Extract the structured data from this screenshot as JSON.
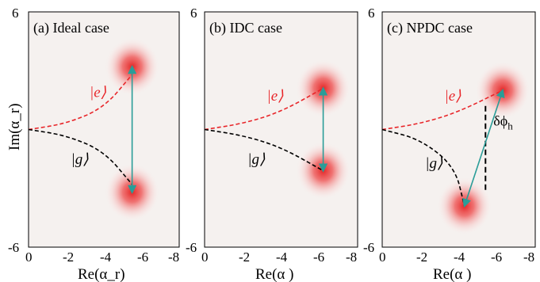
{
  "chart_data": [
    {
      "type": "scatter",
      "title": "(a) Ideal case",
      "xlabel": "Re(α_r)",
      "ylabel": "Im(α_r)",
      "xlim": [
        0,
        -8
      ],
      "ylim": [
        -6,
        6
      ],
      "x_ticks": [
        "0",
        "-2",
        "-4",
        "-6",
        "-8"
      ],
      "y_ticks": [
        "6",
        "-6"
      ],
      "blobs": [
        {
          "x": -5.5,
          "y": 3.2
        },
        {
          "x": -5.5,
          "y": -3.2
        }
      ],
      "paths": [
        {
          "name": "|e⟩",
          "color": "#e8262a",
          "points": [
            [
              0,
              0
            ],
            [
              -2,
              0.3
            ],
            [
              -4,
              1.1
            ],
            [
              -5.5,
              2.8
            ]
          ]
        },
        {
          "name": "|g⟩",
          "color": "#000000",
          "points": [
            [
              0,
              0
            ],
            [
              -2,
              -0.3
            ],
            [
              -4,
              -1.1
            ],
            [
              -5.5,
              -2.8
            ]
          ]
        }
      ],
      "arrow": {
        "from": [
          -5.5,
          -3.2
        ],
        "to": [
          -5.5,
          3.2
        ],
        "color": "#2a9d98",
        "double": true
      },
      "labels": {
        "e_label": "|e⟩",
        "g_label": "|g⟩"
      }
    },
    {
      "type": "scatter",
      "title": "(b) IDC case",
      "xlabel": "Re(α )",
      "ylabel": "",
      "xlim": [
        0,
        -8
      ],
      "ylim": [
        -6,
        6
      ],
      "x_ticks": [
        "0",
        "-2",
        "-4",
        "-6",
        "-8"
      ],
      "y_ticks": [
        "6",
        "-6"
      ],
      "blobs": [
        {
          "x": -6.2,
          "y": 2.1
        },
        {
          "x": -6.2,
          "y": -2.1
        }
      ],
      "paths": [
        {
          "name": "|e⟩",
          "color": "#e8262a",
          "points": [
            [
              0,
              0
            ],
            [
              -2,
              0.3
            ],
            [
              -4,
              0.9
            ],
            [
              -6.2,
              2.1
            ]
          ]
        },
        {
          "name": "|g⟩",
          "color": "#000000",
          "points": [
            [
              0,
              0
            ],
            [
              -2,
              -0.3
            ],
            [
              -4,
              -0.9
            ],
            [
              -6.2,
              -2.1
            ]
          ]
        }
      ],
      "arrow": {
        "from": [
          -6.2,
          -2.1
        ],
        "to": [
          -6.2,
          2.1
        ],
        "color": "#2a9d98",
        "double": true
      },
      "labels": {
        "e_label": "|e⟩",
        "g_label": "|g⟩"
      }
    },
    {
      "type": "scatter",
      "title": "(c) NPDC case",
      "xlabel": "Re(α )",
      "ylabel": "",
      "xlim": [
        0,
        -8
      ],
      "ylim": [
        -6,
        6
      ],
      "x_ticks": [
        "0",
        "-2",
        "-4",
        "-6",
        "-8"
      ],
      "y_ticks": [
        "6",
        "-6"
      ],
      "blobs": [
        {
          "x": -6.3,
          "y": 2.0
        },
        {
          "x": -4.3,
          "y": -3.9
        }
      ],
      "paths": [
        {
          "name": "|e⟩",
          "color": "#e8262a",
          "points": [
            [
              0,
              0
            ],
            [
              -2,
              0.3
            ],
            [
              -4,
              0.9
            ],
            [
              -6.3,
              2.0
            ]
          ]
        },
        {
          "name": "|g⟩",
          "color": "#000000",
          "points": [
            [
              0,
              0
            ],
            [
              -2,
              -0.5
            ],
            [
              -3.8,
              -1.9
            ],
            [
              -4.3,
              -3.9
            ]
          ]
        }
      ],
      "arrow": {
        "from": [
          -4.3,
          -3.9
        ],
        "to": [
          -6.3,
          2.0
        ],
        "color": "#2a9d98",
        "double": true
      },
      "dashed_vertical": {
        "x": -5.4,
        "y_from": 1.2,
        "y_to": -3.2
      },
      "annotation": "δϕ",
      "annotation_sub": "h",
      "labels": {
        "e_label": "|e⟩",
        "g_label": "|g⟩"
      }
    }
  ]
}
